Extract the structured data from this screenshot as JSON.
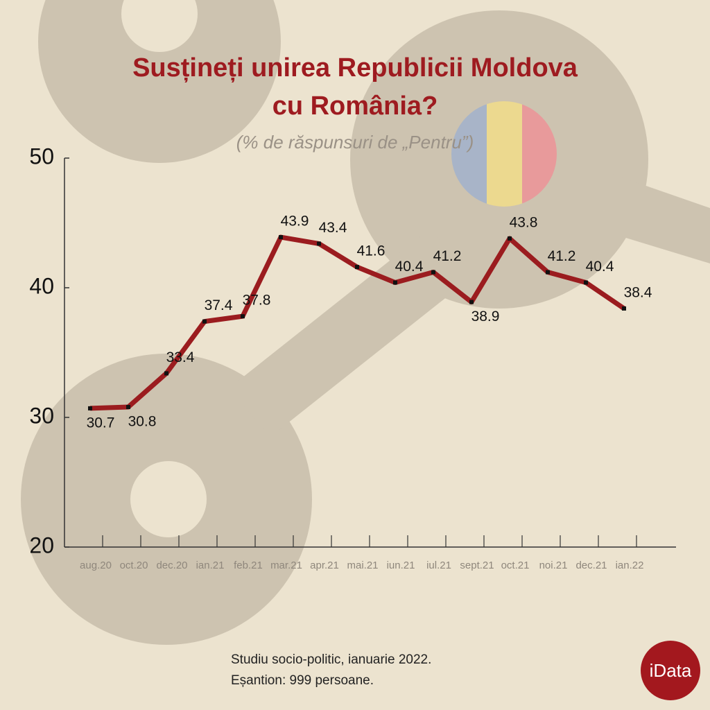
{
  "chart_data": {
    "type": "line",
    "title": [
      "Susțineți unirea Republicii Moldova",
      "cu România?"
    ],
    "subtitle": "(% de răspunsuri de „Pentru”)",
    "categories": [
      "aug.20",
      "oct.20",
      "dec.20",
      "ian.21",
      "feb.21",
      "mar.21",
      "apr.21",
      "mai.21",
      "iun.21",
      "iul.21",
      "sept.21",
      "oct.21",
      "noi.21",
      "dec.21",
      "ian.22"
    ],
    "series": [
      {
        "name": "Pentru",
        "color": "#9b1c1f",
        "values": [
          30.7,
          30.8,
          33.4,
          37.4,
          37.8,
          43.9,
          43.4,
          41.6,
          40.4,
          41.2,
          38.9,
          43.8,
          41.2,
          40.4,
          38.4
        ]
      }
    ],
    "ylim": [
      20,
      50
    ],
    "yticks": [
      20,
      30,
      40,
      50
    ],
    "grid": false,
    "footer": [
      "Studiu socio-politic, ianuarie 2022.",
      "Eșantion: 999 persoane."
    ],
    "logo": "iData"
  }
}
